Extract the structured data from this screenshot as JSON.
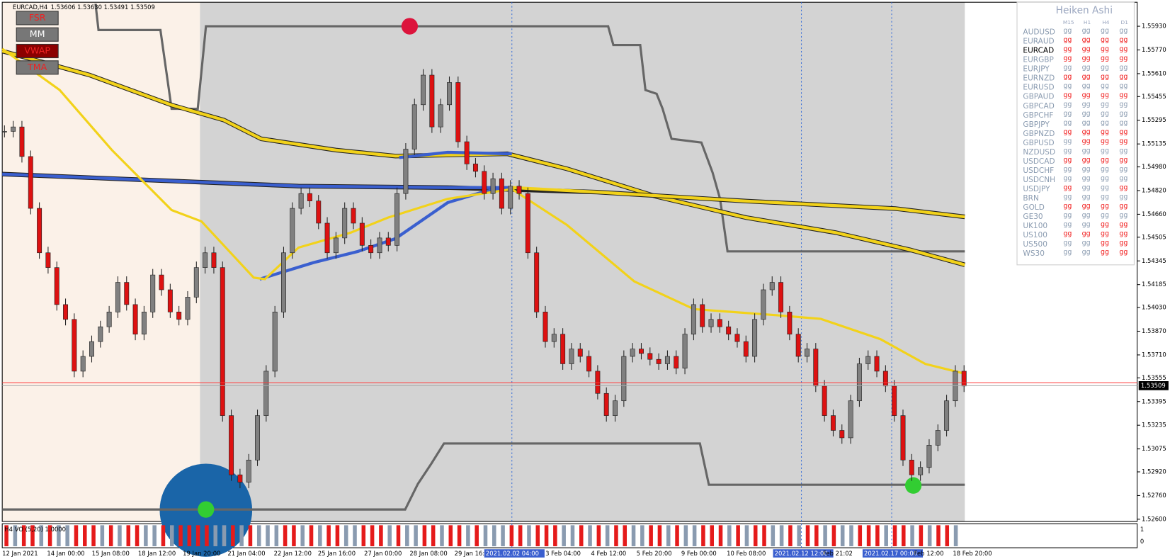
{
  "header": {
    "symbol": "EURCAD,H4",
    "ohlc": "1.53606 1.53630 1.53491 1.53509"
  },
  "buttons": [
    "FSR",
    "MM",
    "VWAP",
    "TMA"
  ],
  "price_axis": {
    "labels": [
      "1.55930",
      "1.55770",
      "1.55610",
      "1.55455",
      "1.55295",
      "1.55135",
      "1.54980",
      "1.54820",
      "1.54660",
      "1.54505",
      "1.54345",
      "1.54185",
      "1.54030",
      "1.53870",
      "1.53710",
      "1.53555",
      "1.53395",
      "1.53235",
      "1.53075",
      "1.52920",
      "1.52760",
      "1.52600"
    ],
    "current": "1.53509"
  },
  "time_axis": {
    "labels": [
      "12 Jan 2021",
      "14 Jan 00:00",
      "15 Jan 08:00",
      "18 Jan 12:00",
      "19 Jan 20:00",
      "21 Jan 04:00",
      "22 Jan 12:00",
      "25 Jan 16:00",
      "27 Jan 00:00",
      "28 Jan 08:00",
      "29 Jan 16:",
      "2021.02.02 04:00",
      "3 Feb 04:00",
      "4 Feb 12:00",
      "5 Feb 20:00",
      "9 Feb 00:00",
      "10 Feb 08:00",
      "2021.02.12 12:00",
      "Feb 21:02",
      "2021.02.17 00:00",
      "Feb 12:00",
      "18 Feb 20:00"
    ]
  },
  "candles": {
    "closes": [
      1.5522,
      1.5525,
      1.5505,
      1.547,
      1.544,
      1.543,
      1.5405,
      1.5395,
      1.536,
      1.537,
      1.538,
      1.539,
      1.54,
      1.542,
      1.5405,
      1.5385,
      1.54,
      1.5425,
      1.5415,
      1.54,
      1.5395,
      1.541,
      1.543,
      1.544,
      1.543,
      1.533,
      1.529,
      1.5285,
      1.53,
      1.533,
      1.536,
      1.54,
      1.544,
      1.547,
      1.548,
      1.5475,
      1.546,
      1.544,
      1.545,
      1.547,
      1.546,
      1.5445,
      1.544,
      1.545,
      1.5445,
      1.548,
      1.551,
      1.554,
      1.556,
      1.5525,
      1.554,
      1.5555,
      1.5515,
      1.55,
      1.5495,
      1.548,
      1.549,
      1.547,
      1.5485,
      1.548,
      1.544,
      1.54,
      1.538,
      1.5385,
      1.5365,
      1.5375,
      1.537,
      1.536,
      1.5345,
      1.533,
      1.534,
      1.537,
      1.5375,
      1.5372,
      1.5368,
      1.5365,
      1.537,
      1.5362,
      1.5385,
      1.5405,
      1.539,
      1.5395,
      1.539,
      1.5385,
      1.538,
      1.537,
      1.5395,
      1.5415,
      1.542,
      1.54,
      1.5385,
      1.537,
      1.5375,
      1.535,
      1.533,
      1.532,
      1.5315,
      1.534,
      1.5365,
      1.537,
      1.536,
      1.535,
      1.533,
      1.53,
      1.529,
      1.5295,
      1.531,
      1.532,
      1.534,
      1.536,
      1.535
    ]
  },
  "indicator": {
    "label": "H4 VO (5,20) 1.0000",
    "axis": [
      "1",
      "0"
    ],
    "bars": [
      1,
      0,
      1,
      1,
      0,
      1,
      0,
      0,
      1,
      1,
      1,
      0,
      1,
      0,
      1,
      1,
      0,
      0,
      1,
      0,
      1,
      1,
      1,
      1,
      0,
      0,
      1,
      0,
      1,
      0,
      0,
      0,
      1,
      1,
      0,
      1,
      0,
      1,
      1,
      0,
      0,
      1,
      1,
      1,
      0,
      1,
      0,
      0,
      1,
      1,
      0,
      1,
      1,
      0,
      1,
      0,
      0,
      0,
      1,
      1,
      0,
      1,
      1,
      1,
      0,
      0,
      1,
      0,
      1,
      0,
      1,
      1,
      0,
      0,
      1,
      1,
      0,
      1,
      0,
      0,
      1,
      1,
      1,
      0,
      1,
      0,
      1,
      1,
      0,
      0,
      1,
      0,
      1,
      1,
      0,
      1,
      0,
      0,
      1,
      1,
      1,
      0,
      1,
      1,
      0,
      1,
      0,
      1,
      1,
      0
    ]
  },
  "panel": {
    "title": "Heiken Ashi",
    "columns": [
      "M15",
      "H1",
      "H4",
      "D1"
    ],
    "rows": [
      {
        "symbol": "AUDUSD",
        "cells": [
          "gg",
          "gg",
          "gg",
          "gg"
        ],
        "colors": [
          "gray",
          "gray",
          "gray",
          "gray"
        ]
      },
      {
        "symbol": "EURAUD",
        "cells": [
          "gg",
          "gg",
          "gg",
          "gg"
        ],
        "colors": [
          "red",
          "red",
          "red",
          "red"
        ]
      },
      {
        "symbol": "EURCAD",
        "cells": [
          "gg",
          "gg",
          "gg",
          "gg"
        ],
        "colors": [
          "red",
          "red",
          "red",
          "red"
        ]
      },
      {
        "symbol": "EURGBP",
        "cells": [
          "gg",
          "gg",
          "gg",
          "gg"
        ],
        "colors": [
          "red",
          "red",
          "red",
          "red"
        ]
      },
      {
        "symbol": "EURJPY",
        "cells": [
          "gg",
          "gg",
          "gg",
          "gg"
        ],
        "colors": [
          "gray",
          "gray",
          "gray",
          "gray"
        ]
      },
      {
        "symbol": "EURNZD",
        "cells": [
          "gg",
          "gg",
          "gg",
          "gg"
        ],
        "colors": [
          "red",
          "red",
          "red",
          "red"
        ]
      },
      {
        "symbol": "EURUSD",
        "cells": [
          "gg",
          "gg",
          "gg",
          "gg"
        ],
        "colors": [
          "gray",
          "gray",
          "gray",
          "gray"
        ]
      },
      {
        "symbol": "GBPAUD",
        "cells": [
          "gg",
          "gg",
          "gg",
          "gg"
        ],
        "colors": [
          "red",
          "red",
          "red",
          "red"
        ]
      },
      {
        "symbol": "GBPCAD",
        "cells": [
          "gg",
          "gg",
          "gg",
          "gg"
        ],
        "colors": [
          "gray",
          "gray",
          "gray",
          "gray"
        ]
      },
      {
        "symbol": "GBPCHF",
        "cells": [
          "gg",
          "gg",
          "gg",
          "gg"
        ],
        "colors": [
          "gray",
          "gray",
          "gray",
          "gray"
        ]
      },
      {
        "symbol": "GBPJPY",
        "cells": [
          "gg",
          "gg",
          "gg",
          "gg"
        ],
        "colors": [
          "gray",
          "gray",
          "gray",
          "gray"
        ]
      },
      {
        "symbol": "GBPNZD",
        "cells": [
          "gg",
          "gg",
          "gg",
          "gg"
        ],
        "colors": [
          "red",
          "red",
          "red",
          "red"
        ]
      },
      {
        "symbol": "GBPUSD",
        "cells": [
          "gg",
          "gg",
          "gg",
          "gg"
        ],
        "colors": [
          "gray",
          "red",
          "red",
          "red"
        ]
      },
      {
        "symbol": "NZDUSD",
        "cells": [
          "gg",
          "gg",
          "gg",
          "gg"
        ],
        "colors": [
          "gray",
          "gray",
          "gray",
          "gray"
        ]
      },
      {
        "symbol": "USDCAD",
        "cells": [
          "gg",
          "gg",
          "gg",
          "gg"
        ],
        "colors": [
          "red",
          "red",
          "red",
          "red"
        ]
      },
      {
        "symbol": "USDCHF",
        "cells": [
          "gg",
          "gg",
          "gg",
          "gg"
        ],
        "colors": [
          "gray",
          "gray",
          "gray",
          "gray"
        ]
      },
      {
        "symbol": "USDCNH",
        "cells": [
          "gg",
          "gg",
          "gg",
          "gg"
        ],
        "colors": [
          "gray",
          "gray",
          "gray",
          "gray"
        ]
      },
      {
        "symbol": "USDJPY",
        "cells": [
          "gg",
          "gg",
          "gg",
          "gg"
        ],
        "colors": [
          "red",
          "gray",
          "gray",
          "red"
        ]
      },
      {
        "symbol": "BRN",
        "cells": [
          "gg",
          "gg",
          "gg",
          "gg"
        ],
        "colors": [
          "gray",
          "gray",
          "gray",
          "gray"
        ]
      },
      {
        "symbol": "GOLD",
        "cells": [
          "gg",
          "gg",
          "gg",
          "gg"
        ],
        "colors": [
          "red",
          "red",
          "red",
          "red"
        ]
      },
      {
        "symbol": "GE30",
        "cells": [
          "gg",
          "gg",
          "gg",
          "gg"
        ],
        "colors": [
          "gray",
          "gray",
          "gray",
          "gray"
        ]
      },
      {
        "symbol": "UK100",
        "cells": [
          "gg",
          "gg",
          "gg",
          "gg"
        ],
        "colors": [
          "gray",
          "gray",
          "red",
          "red"
        ]
      },
      {
        "symbol": "US100",
        "cells": [
          "gg",
          "gg",
          "gg",
          "gg"
        ],
        "colors": [
          "red",
          "red",
          "red",
          "red"
        ]
      },
      {
        "symbol": "US500",
        "cells": [
          "gg",
          "gg",
          "gg",
          "gg"
        ],
        "colors": [
          "gray",
          "gray",
          "red",
          "red"
        ]
      },
      {
        "symbol": "WS30",
        "cells": [
          "gg",
          "gg",
          "gg",
          "gg"
        ],
        "colors": [
          "gray",
          "gray",
          "red",
          "red"
        ]
      }
    ]
  }
}
